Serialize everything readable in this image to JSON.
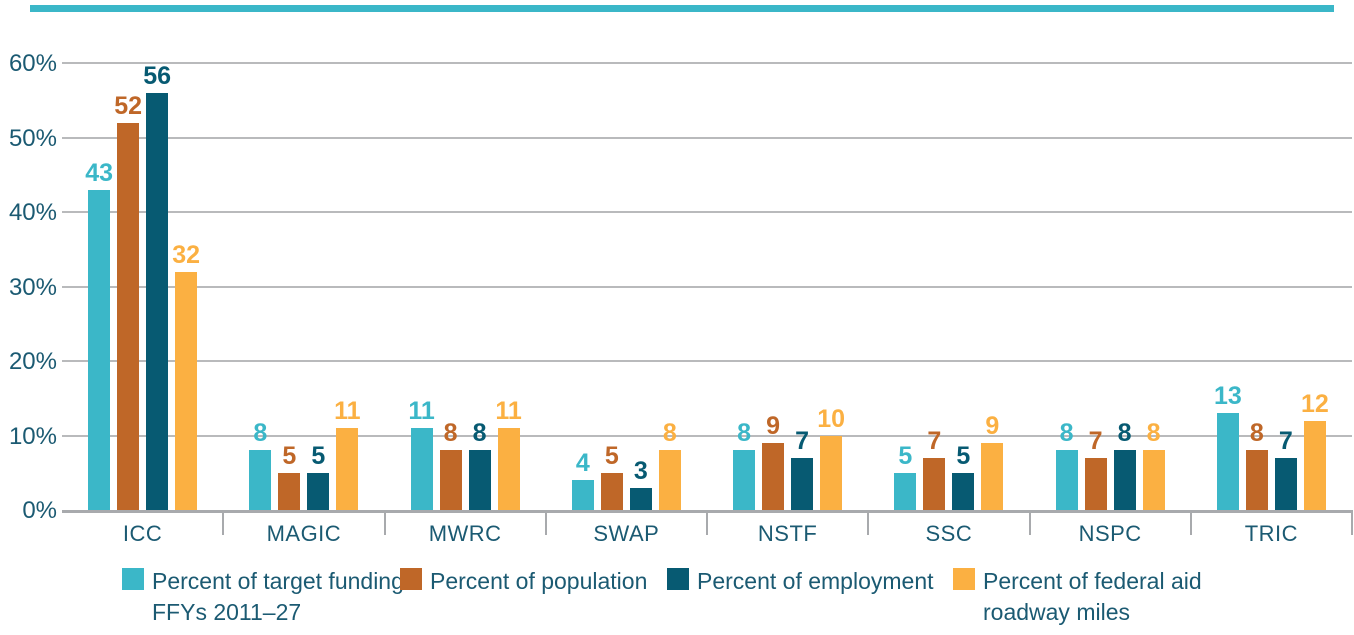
{
  "chart_data": {
    "type": "bar",
    "title": "",
    "categories": [
      "ICC",
      "MAGIC",
      "MWRC",
      "SWAP",
      "NSTF",
      "SSC",
      "NSPC",
      "TRIC"
    ],
    "series": [
      {
        "name": "Percent of target funding FFYs 2011–27",
        "color": "#3bb7c8",
        "values": [
          43,
          8,
          11,
          4,
          8,
          5,
          8,
          13
        ]
      },
      {
        "name": "Percent of population",
        "color": "#bf6728",
        "values": [
          52,
          5,
          8,
          5,
          9,
          7,
          7,
          8
        ]
      },
      {
        "name": "Percent of employment",
        "color": "#075a72",
        "values": [
          56,
          5,
          8,
          3,
          7,
          5,
          8,
          7
        ]
      },
      {
        "name": "Percent of federal aid roadway miles",
        "color": "#fbb042",
        "values": [
          32,
          11,
          11,
          8,
          10,
          9,
          8,
          12
        ]
      }
    ],
    "xlabel": "",
    "ylabel": "",
    "ylim": [
      0,
      60
    ],
    "ytick_labels": [
      "0%",
      "10%",
      "20%",
      "30%",
      "40%",
      "50%",
      "60%"
    ],
    "grid": true,
    "value_labels": true,
    "legend_position": "bottom"
  },
  "legend": {
    "items": [
      {
        "lines": [
          "Percent of target funding",
          "FFYs 2011–27"
        ],
        "color": "#3bb7c8"
      },
      {
        "lines": [
          "Percent of population"
        ],
        "color": "#bf6728"
      },
      {
        "lines": [
          "Percent of employment"
        ],
        "color": "#075a72"
      },
      {
        "lines": [
          "Percent of federal aid",
          "roadway miles"
        ],
        "color": "#fbb042"
      }
    ]
  },
  "decor": {
    "top_rule_color": "#3bb7c8"
  },
  "colors": {
    "text": "#1b5a72",
    "gridline": "#b9babc",
    "axis": "#a8aaad"
  }
}
